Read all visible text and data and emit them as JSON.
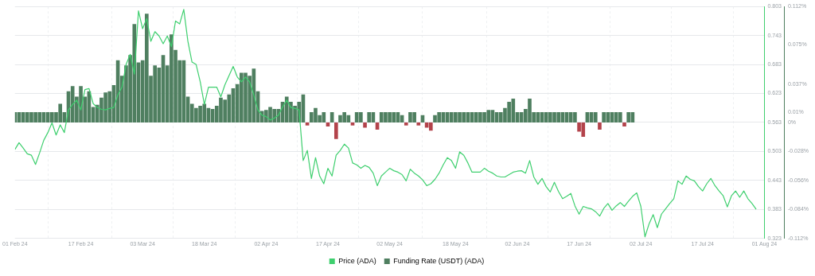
{
  "chart_data": {
    "type": "line",
    "x": [
      "2024-02-01",
      "2024-02-02",
      "2024-02-03",
      "2024-02-04",
      "2024-02-05",
      "2024-02-06",
      "2024-02-07",
      "2024-02-08",
      "2024-02-09",
      "2024-02-10",
      "2024-02-11",
      "2024-02-12",
      "2024-02-13",
      "2024-02-14",
      "2024-02-15",
      "2024-02-16",
      "2024-02-17",
      "2024-02-18",
      "2024-02-19",
      "2024-02-20",
      "2024-02-21",
      "2024-02-22",
      "2024-02-23",
      "2024-02-24",
      "2024-02-25",
      "2024-02-26",
      "2024-02-27",
      "2024-02-28",
      "2024-02-29",
      "2024-03-01",
      "2024-03-02",
      "2024-03-03",
      "2024-03-04",
      "2024-03-05",
      "2024-03-06",
      "2024-03-07",
      "2024-03-08",
      "2024-03-09",
      "2024-03-10",
      "2024-03-11",
      "2024-03-12",
      "2024-03-13",
      "2024-03-14",
      "2024-03-15",
      "2024-03-16",
      "2024-03-17",
      "2024-03-18",
      "2024-03-19",
      "2024-03-20",
      "2024-03-21",
      "2024-03-22",
      "2024-03-23",
      "2024-03-24",
      "2024-03-25",
      "2024-03-26",
      "2024-03-27",
      "2024-03-28",
      "2024-03-29",
      "2024-03-30",
      "2024-03-31",
      "2024-04-01",
      "2024-04-02",
      "2024-04-03",
      "2024-04-04",
      "2024-04-05",
      "2024-04-06",
      "2024-04-07",
      "2024-04-08",
      "2024-04-09",
      "2024-04-10",
      "2024-04-11",
      "2024-04-12",
      "2024-04-13",
      "2024-04-14",
      "2024-04-15",
      "2024-04-16",
      "2024-04-17",
      "2024-04-18",
      "2024-04-19",
      "2024-04-20",
      "2024-04-21",
      "2024-04-22",
      "2024-04-23",
      "2024-04-24",
      "2024-04-25",
      "2024-04-26",
      "2024-04-27",
      "2024-04-28",
      "2024-04-29",
      "2024-04-30",
      "2024-05-01",
      "2024-05-02",
      "2024-05-03",
      "2024-05-04",
      "2024-05-05",
      "2024-05-06",
      "2024-05-07",
      "2024-05-08",
      "2024-05-09",
      "2024-05-10",
      "2024-05-11",
      "2024-05-12",
      "2024-05-13",
      "2024-05-14",
      "2024-05-15",
      "2024-05-16",
      "2024-05-17",
      "2024-05-18",
      "2024-05-19",
      "2024-05-20",
      "2024-05-21",
      "2024-05-22",
      "2024-05-23",
      "2024-05-24",
      "2024-05-25",
      "2024-05-26",
      "2024-05-27",
      "2024-05-28",
      "2024-05-29",
      "2024-05-30",
      "2024-05-31",
      "2024-06-01",
      "2024-06-02",
      "2024-06-03",
      "2024-06-04",
      "2024-06-05",
      "2024-06-06",
      "2024-06-07",
      "2024-06-08",
      "2024-06-09",
      "2024-06-10",
      "2024-06-11",
      "2024-06-12",
      "2024-06-13",
      "2024-06-14",
      "2024-06-15",
      "2024-06-16",
      "2024-06-17",
      "2024-06-18",
      "2024-06-19",
      "2024-06-20",
      "2024-06-21",
      "2024-06-22",
      "2024-06-23",
      "2024-06-24",
      "2024-06-25",
      "2024-06-26",
      "2024-06-27",
      "2024-06-28",
      "2024-06-29",
      "2024-06-30",
      "2024-07-01",
      "2024-07-02",
      "2024-07-03",
      "2024-07-04",
      "2024-07-05",
      "2024-07-06",
      "2024-07-07",
      "2024-07-08",
      "2024-07-09",
      "2024-07-10",
      "2024-07-11",
      "2024-07-12",
      "2024-07-13",
      "2024-07-14",
      "2024-07-15",
      "2024-07-16",
      "2024-07-17",
      "2024-07-18",
      "2024-07-19",
      "2024-07-20",
      "2024-07-21",
      "2024-07-22",
      "2024-07-23",
      "2024-07-24",
      "2024-07-25",
      "2024-07-26",
      "2024-07-27",
      "2024-07-28",
      "2024-07-29",
      "2024-07-30"
    ],
    "series": [
      {
        "name": "Funding Rate (USDT) (ADA)",
        "type": "bar",
        "axis": "y2",
        "color": "#4f7f60",
        "values": [
          0.01,
          0.01,
          0.01,
          0.01,
          0.01,
          0.01,
          0.01,
          0.01,
          0.01,
          0.01,
          0.01,
          0.018,
          0.01,
          0.03,
          0.035,
          0.025,
          0.035,
          0.025,
          0.03,
          0.015,
          0.017,
          0.024,
          0.029,
          0.03,
          0.036,
          0.06,
          0.045,
          0.055,
          0.065,
          0.095,
          0.058,
          0.06,
          0.105,
          0.045,
          0.055,
          0.053,
          0.065,
          0.055,
          0.085,
          0.07,
          0.06,
          0.06,
          0.025,
          0.018,
          0.014,
          0.016,
          0.018,
          0.014,
          0.013,
          0.016,
          0.024,
          0.022,
          0.027,
          0.033,
          0.037,
          0.048,
          0.048,
          0.045,
          0.052,
          0.03,
          0.011,
          0.012,
          0.015,
          0.013,
          0.013,
          0.02,
          0.025,
          0.02,
          0.016,
          0.02,
          0.027,
          -0.003,
          0.01,
          0.014,
          0.007,
          0.01,
          -0.004,
          0.01,
          -0.016,
          0.007,
          0.01,
          0.007,
          -0.003,
          0.01,
          0.01,
          -0.005,
          0.01,
          0.01,
          -0.007,
          0.01,
          0.01,
          0.01,
          0.01,
          0.01,
          0.007,
          -0.003,
          0.01,
          0.01,
          -0.003,
          0.007,
          -0.005,
          -0.008,
          0.007,
          0.01,
          0.01,
          0.01,
          0.01,
          0.01,
          0.01,
          0.01,
          0.01,
          0.01,
          0.01,
          0.01,
          0.01,
          0.012,
          0.012,
          0.01,
          0.01,
          0.014,
          0.02,
          0.023,
          0.01,
          0.01,
          0.013,
          0.023,
          0.01,
          0.01,
          0.01,
          0.01,
          0.01,
          0.01,
          0.01,
          0.01,
          0.01,
          0.01,
          0.01,
          -0.009,
          -0.014,
          0.01,
          0.01,
          0.01,
          -0.007,
          0.01,
          0.01,
          0.01,
          0.01,
          0.01,
          -0.004,
          0.01,
          0.01,
          null,
          null,
          null,
          null,
          null,
          null,
          null,
          null,
          null,
          null,
          null,
          null,
          null,
          null,
          null,
          null,
          null,
          null,
          null,
          null,
          null,
          null,
          null,
          null,
          null,
          null,
          null,
          null,
          null,
          null
        ],
        "colors": [
          "#4f7f60",
          "#4f7f60",
          "#4f7f60",
          "#4f7f60",
          "#4f7f60",
          "#4f7f60",
          "#4f7f60",
          "#4f7f60",
          "#4f7f60",
          "#4f7f60",
          "#4f7f60",
          "#4f7f60",
          "#4f7f60",
          "#4f7f60",
          "#4f7f60",
          "#4f7f60",
          "#4f7f60",
          "#4f7f60",
          "#4f7f60",
          "#4f7f60",
          "#4f7f60",
          "#4f7f60",
          "#4f7f60",
          "#4f7f60",
          "#4f7f60",
          "#4f7f60",
          "#4f7f60",
          "#4f7f60",
          "#4f7f60",
          "#4f7f60",
          "#4f7f60",
          "#4f7f60",
          "#4f7f60",
          "#4f7f60",
          "#4f7f60",
          "#4f7f60",
          "#4f7f60",
          "#4f7f60",
          "#4f7f60",
          "#4f7f60",
          "#4f7f60",
          "#4f7f60",
          "#4f7f60",
          "#4f7f60",
          "#4f7f60",
          "#4f7f60",
          "#4f7f60",
          "#4f7f60",
          "#4f7f60",
          "#4f7f60",
          "#4f7f60",
          "#4f7f60",
          "#4f7f60",
          "#4f7f60",
          "#4f7f60",
          "#4f7f60",
          "#4f7f60",
          "#4f7f60",
          "#4f7f60",
          "#4f7f60",
          "#4f7f60",
          "#4f7f60",
          "#4f7f60",
          "#4f7f60",
          "#4f7f60",
          "#4f7f60",
          "#4f7f60",
          "#4f7f60",
          "#4f7f60",
          "#4f7f60",
          "#4f7f60",
          "#b3434b",
          "#4f7f60",
          "#4f7f60",
          "#4f7f60",
          "#4f7f60",
          "#b3434b",
          "#4f7f60",
          "#b3434b",
          "#4f7f60",
          "#4f7f60",
          "#4f7f60",
          "#b3434b",
          "#4f7f60",
          "#4f7f60",
          "#b3434b",
          "#4f7f60",
          "#4f7f60",
          "#b3434b",
          "#4f7f60",
          "#4f7f60",
          "#4f7f60",
          "#4f7f60",
          "#4f7f60",
          "#4f7f60",
          "#b3434b",
          "#4f7f60",
          "#4f7f60",
          "#b3434b",
          "#4f7f60",
          "#b3434b",
          "#b3434b",
          "#4f7f60",
          "#4f7f60",
          "#4f7f60",
          "#4f7f60",
          "#4f7f60",
          "#4f7f60",
          "#4f7f60",
          "#4f7f60",
          "#4f7f60",
          "#4f7f60",
          "#4f7f60",
          "#4f7f60",
          "#4f7f60",
          "#4f7f60",
          "#4f7f60",
          "#4f7f60",
          "#4f7f60",
          "#4f7f60",
          "#4f7f60",
          "#4f7f60",
          "#4f7f60",
          "#4f7f60",
          "#4f7f60",
          "#4f7f60",
          "#4f7f60",
          "#4f7f60",
          "#4f7f60",
          "#4f7f60",
          "#4f7f60",
          "#4f7f60",
          "#4f7f60",
          "#4f7f60",
          "#4f7f60",
          "#4f7f60",
          "#4f7f60",
          "#b3434b",
          "#b3434b",
          "#4f7f60",
          "#4f7f60",
          "#4f7f60",
          "#b3434b",
          "#4f7f60",
          "#4f7f60",
          "#4f7f60",
          "#4f7f60",
          "#4f7f60",
          "#b3434b",
          "#4f7f60",
          "#4f7f60",
          null,
          null,
          null,
          null,
          null,
          null,
          null,
          null,
          null,
          null,
          null,
          null,
          null,
          null,
          null,
          null,
          null,
          null,
          null,
          null,
          null,
          null,
          null,
          null,
          null,
          null,
          null,
          null,
          null,
          null
        ]
      },
      {
        "name": "Price (ADA)",
        "axis": "y",
        "color": "#3ecf6e",
        "values": [
          0.507,
          0.521,
          0.51,
          0.498,
          0.495,
          0.476,
          0.5,
          0.526,
          0.542,
          0.562,
          0.537,
          0.558,
          0.542,
          0.589,
          0.6,
          0.609,
          0.589,
          0.631,
          0.633,
          0.602,
          0.594,
          0.59,
          0.589,
          0.592,
          0.594,
          0.62,
          0.636,
          0.683,
          0.704,
          0.663,
          0.794,
          0.757,
          0.778,
          0.731,
          0.751,
          0.742,
          0.726,
          0.742,
          0.72,
          0.773,
          0.767,
          0.797,
          0.731,
          0.688,
          0.683,
          0.647,
          0.6,
          0.636,
          0.636,
          0.636,
          0.616,
          0.641,
          0.66,
          0.679,
          0.657,
          0.647,
          0.657,
          0.647,
          0.62,
          0.589,
          0.578,
          0.575,
          0.568,
          0.572,
          0.578,
          0.595,
          0.609,
          0.594,
          0.592,
          0.589,
          0.484,
          0.505,
          0.447,
          0.49,
          0.452,
          0.436,
          0.468,
          0.452,
          0.495,
          0.505,
          0.518,
          0.51,
          0.479,
          0.475,
          0.468,
          0.474,
          0.47,
          0.458,
          0.432,
          0.452,
          0.46,
          0.468,
          0.463,
          0.46,
          0.455,
          0.442,
          0.466,
          0.458,
          0.452,
          0.444,
          0.432,
          0.436,
          0.445,
          0.458,
          0.475,
          0.49,
          0.484,
          0.468,
          0.502,
          0.495,
          0.479,
          0.46,
          0.46,
          0.46,
          0.468,
          0.462,
          0.458,
          0.452,
          0.45,
          0.45,
          0.455,
          0.46,
          0.462,
          0.463,
          0.458,
          0.484,
          0.45,
          0.435,
          0.447,
          0.43,
          0.419,
          0.439,
          0.42,
          0.405,
          0.41,
          0.416,
          0.39,
          0.373,
          0.389,
          0.386,
          0.384,
          0.378,
          0.369,
          0.385,
          0.395,
          0.381,
          0.39,
          0.397,
          0.389,
          0.4,
          0.41,
          0.417,
          0.389,
          0.326,
          0.353,
          0.372,
          0.345,
          0.373,
          0.384,
          0.395,
          0.405,
          0.442,
          0.435,
          0.452,
          0.445,
          0.442,
          0.43,
          0.421,
          0.436,
          0.447,
          0.432,
          0.421,
          0.411,
          0.388,
          0.411,
          0.421,
          0.408,
          0.421,
          0.405,
          0.395,
          0.383
        ]
      }
    ],
    "xlim": [
      "2024-02-01",
      "2024-08-01"
    ],
    "xticks": [
      {
        "value": "2024-02-01",
        "label": "01 Feb 24"
      },
      {
        "value": "2024-02-17",
        "label": "17 Feb 24"
      },
      {
        "value": "2024-03-03",
        "label": "03 Mar 24"
      },
      {
        "value": "2024-03-18",
        "label": "18 Mar 24"
      },
      {
        "value": "2024-04-02",
        "label": "02 Apr 24"
      },
      {
        "value": "2024-04-17",
        "label": "17 Apr 24"
      },
      {
        "value": "2024-05-02",
        "label": "02 May 24"
      },
      {
        "value": "2024-05-18",
        "label": "18 May 24"
      },
      {
        "value": "2024-06-02",
        "label": "02 Jun 24"
      },
      {
        "value": "2024-06-17",
        "label": "17 Jun 24"
      },
      {
        "value": "2024-07-02",
        "label": "02 Jul 24"
      },
      {
        "value": "2024-07-17",
        "label": "17 Jul 24"
      },
      {
        "value": "2024-08-01",
        "label": "01 Aug 24"
      }
    ],
    "ylim": [
      0.323,
      0.803
    ],
    "yticks": [
      0.323,
      0.383,
      0.443,
      0.503,
      0.563,
      0.623,
      0.683,
      0.743,
      0.803
    ],
    "y2lim": [
      -0.112,
      0.112
    ],
    "y2ticks": [
      {
        "value": -0.112,
        "label": "-0.112%"
      },
      {
        "value": -0.084,
        "label": "-0.084%"
      },
      {
        "value": -0.056,
        "label": "-0.056%"
      },
      {
        "value": -0.028,
        "label": "-0.028%"
      },
      {
        "value": 0,
        "label": "0%"
      },
      {
        "value": 0.01,
        "label": "0.01%"
      },
      {
        "value": 0.037,
        "label": "0.037%"
      },
      {
        "value": 0.075,
        "label": "0.075%"
      },
      {
        "value": 0.112,
        "label": "0.112%"
      }
    ],
    "grid": true,
    "legend": "bottom",
    "marker": "none",
    "line_style": "solid"
  }
}
